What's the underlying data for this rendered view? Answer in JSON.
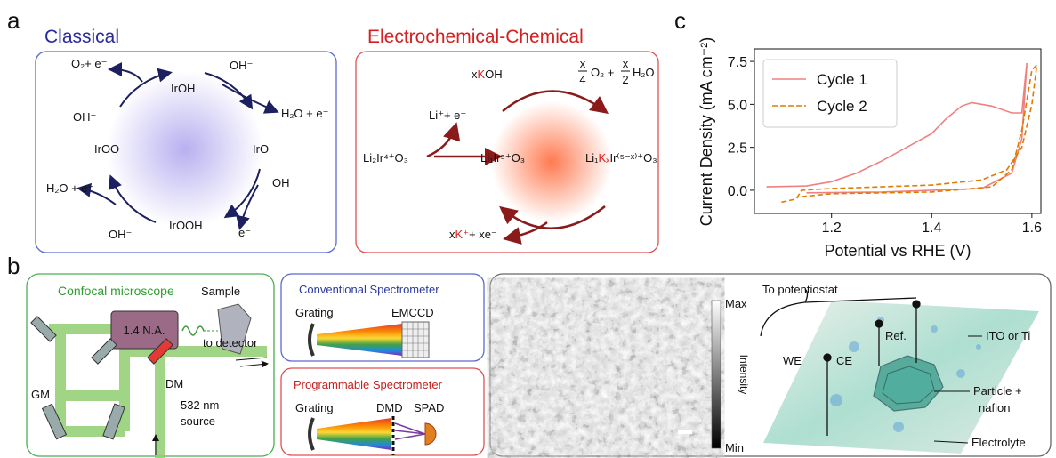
{
  "panel_labels": [
    "a",
    "b",
    "c"
  ],
  "classical": {
    "title": "Classical",
    "labels": [
      "O₂+ e⁻",
      "IrOH",
      "OH⁻",
      "OH⁻",
      "H₂O + e⁻",
      "IrOO",
      "IrO",
      "OH⁻",
      "H₂O + e⁻",
      "IrOOH",
      "OH⁻",
      "e⁻"
    ]
  },
  "ec": {
    "title": "Electrochemical-Chemical",
    "xkoh": [
      "x",
      "K",
      "OH"
    ],
    "products": [
      "x",
      "4",
      "O₂ +",
      "x",
      "2",
      "H₂O"
    ],
    "li_release": "Li⁺+ e⁻",
    "start": "Li₂Ir⁴⁺O₃",
    "middle": "Li₁Ir⁵⁺O₃",
    "end": [
      "Li₁",
      "Kₓ",
      "Ir⁽⁵⁻ˣ⁾⁺O₃"
    ],
    "release": [
      "x",
      "K⁺",
      "+ xe⁻"
    ]
  },
  "confocal": {
    "title": "Confocal microscope",
    "sample": "Sample",
    "objective": "1.4 N.A.",
    "detector": "to detector",
    "gm": "GM",
    "dm": "DM",
    "source": [
      "532 nm",
      "source"
    ]
  },
  "conventional": {
    "title": "Conventional Spectrometer",
    "grating": "Grating",
    "camera": "EMCCD"
  },
  "programmable": {
    "title": "Programmable Spectrometer",
    "grating": "Grating",
    "dmd": "DMD",
    "spad": "SPAD"
  },
  "image": {
    "max": "Max",
    "min": "Min",
    "colorbar": "Intensity"
  },
  "cell": {
    "potentiostat": "To potentiostat",
    "we": "WE",
    "ce": "CE",
    "ref": "Ref.",
    "substrate": "ITO or Ti",
    "particle": [
      "Particle +",
      "nafion"
    ],
    "electrolyte": "Electrolyte"
  },
  "chart_data": {
    "type": "line",
    "xlabel": "Potential vs RHE (V)",
    "ylabel": "Current Density (mA cm⁻²)",
    "xlim": [
      1.046,
      1.618
    ],
    "ylim": [
      -1.35,
      8.23
    ],
    "xticks": [
      1.2,
      1.4,
      1.6
    ],
    "yticks": [
      {
        "value": 0,
        "label": "0.0"
      },
      2.5,
      {
        "value": 5,
        "label": "5.0"
      },
      7.5
    ],
    "legend": "upper left",
    "series": [
      {
        "name": "Cycle 1",
        "color": "#f08080",
        "dash": false,
        "x": [
          1.07,
          1.15,
          1.2,
          1.25,
          1.3,
          1.35,
          1.4,
          1.43,
          1.46,
          1.48,
          1.52,
          1.56,
          1.58,
          1.585,
          1.59,
          1.58,
          1.56,
          1.5,
          1.3,
          1.15
        ],
        "values": [
          0.2,
          0.25,
          0.5,
          1.0,
          1.7,
          2.5,
          3.3,
          4.2,
          4.9,
          5.1,
          4.9,
          4.5,
          4.5,
          6.0,
          7.4,
          3.0,
          1.0,
          0.1,
          -0.1,
          -0.15
        ]
      },
      {
        "name": "Cycle 2",
        "color": "#e07b00",
        "dash": true,
        "x": [
          1.1,
          1.13,
          1.14,
          1.2,
          1.4,
          1.5,
          1.55,
          1.58,
          1.6,
          1.61,
          1.6,
          1.58,
          1.56,
          1.52,
          1.4,
          1.2,
          1.13
        ],
        "values": [
          -0.7,
          -0.5,
          0.0,
          0.1,
          0.3,
          0.6,
          1.2,
          2.5,
          5.0,
          7.3,
          7.0,
          3.5,
          1.2,
          0.2,
          -0.1,
          -0.2,
          -0.4
        ]
      }
    ]
  }
}
